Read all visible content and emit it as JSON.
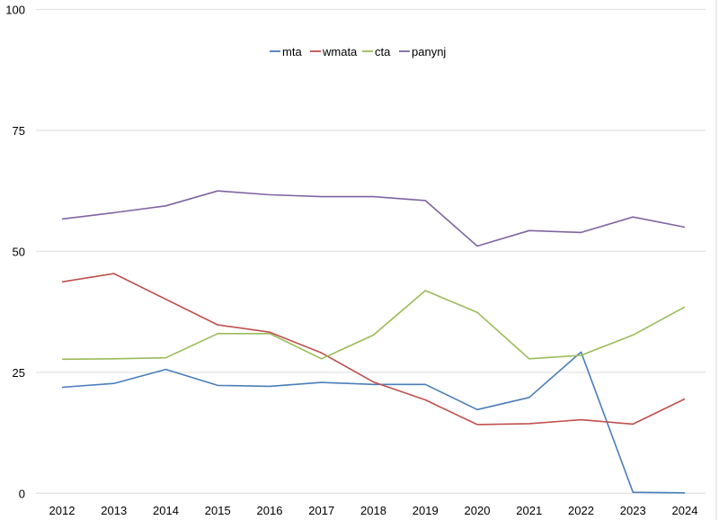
{
  "chart_data": {
    "type": "line",
    "title": "",
    "xlabel": "",
    "ylabel": "",
    "x": [
      "2012",
      "2013",
      "2014",
      "2015",
      "2016",
      "2017",
      "2018",
      "2019",
      "2020",
      "2021",
      "2022",
      "2023",
      "2024"
    ],
    "ylim": [
      0,
      100
    ],
    "yticks": [
      "0",
      "25",
      "50",
      "75",
      "100"
    ],
    "grid": true,
    "legend": "top-center",
    "series": [
      {
        "name": "mta",
        "color": "#4a7ebb",
        "values": [
          21.9,
          22.7,
          25.6,
          22.3,
          22.1,
          22.9,
          22.5,
          22.5,
          17.3,
          19.8,
          29.2,
          0.2,
          0.1
        ]
      },
      {
        "name": "wmata",
        "color": "#c0504d",
        "values": [
          43.7,
          45.4,
          40.1,
          34.8,
          33.3,
          29.0,
          23.0,
          19.3,
          14.2,
          14.4,
          15.2,
          14.3,
          19.5
        ]
      },
      {
        "name": "cta",
        "color": "#9bbb59",
        "values": [
          27.7,
          27.8,
          28.0,
          33.0,
          33.0,
          27.8,
          32.7,
          41.9,
          37.4,
          27.8,
          28.5,
          32.7,
          38.5
        ]
      },
      {
        "name": "panynj",
        "color": "#8064a2",
        "values": [
          56.7,
          58.0,
          59.4,
          62.5,
          61.7,
          61.3,
          61.3,
          60.5,
          51.1,
          54.3,
          53.9,
          57.1,
          55.0
        ]
      }
    ]
  }
}
